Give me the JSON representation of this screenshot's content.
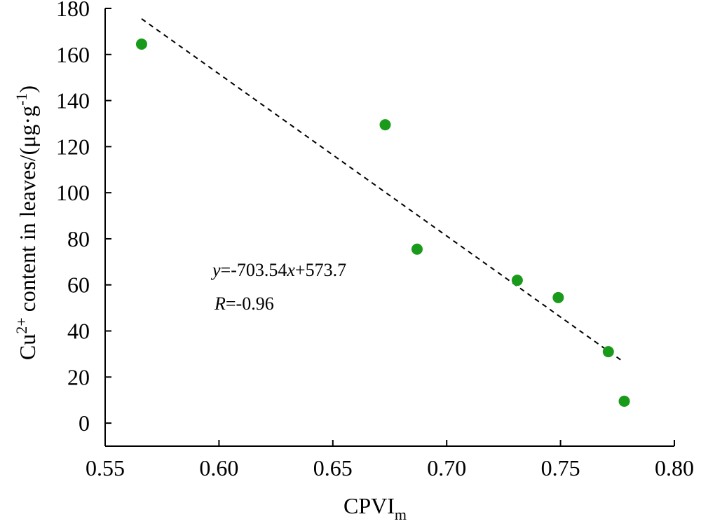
{
  "chart_data": {
    "type": "scatter",
    "title": "",
    "xlabel": {
      "main": "CPVI",
      "subscript": "m"
    },
    "ylabel": {
      "prefix": "Cu",
      "superscript": "2+",
      "mid": " content in leaves/(μg·g",
      "exp": "-1",
      "suffix": ")"
    },
    "xlim": [
      0.55,
      0.8
    ],
    "ylim": [
      -10,
      180
    ],
    "xticks": [
      0.55,
      0.6,
      0.65,
      0.7,
      0.75,
      0.8
    ],
    "xtick_labels": [
      "0.55",
      "0.60",
      "0.65",
      "0.70",
      "0.75",
      "0.80"
    ],
    "yticks": [
      0,
      20,
      40,
      60,
      80,
      100,
      120,
      140,
      160,
      180
    ],
    "ytick_labels": [
      "0",
      "20",
      "40",
      "60",
      "80",
      "100",
      "120",
      "140",
      "160",
      "180"
    ],
    "points": [
      {
        "x": 0.566,
        "y": 164.5
      },
      {
        "x": 0.673,
        "y": 129.5
      },
      {
        "x": 0.687,
        "y": 75.5
      },
      {
        "x": 0.731,
        "y": 62.0
      },
      {
        "x": 0.749,
        "y": 54.5
      },
      {
        "x": 0.771,
        "y": 31.0
      },
      {
        "x": 0.778,
        "y": 9.5
      }
    ],
    "point_color": "#1a9a1a",
    "trendline": {
      "slope": -703.54,
      "intercept": 573.7,
      "x_from": 0.566,
      "x_to": 0.7775,
      "style": "dashed"
    },
    "annotations": {
      "equation": {
        "var_y": "y",
        "middle": "=-703.54",
        "var_x": "x",
        "tail": "+573.7"
      },
      "r_value": {
        "var_r": "R",
        "tail": "=-0.96"
      }
    },
    "grid": false,
    "legend": "none"
  }
}
